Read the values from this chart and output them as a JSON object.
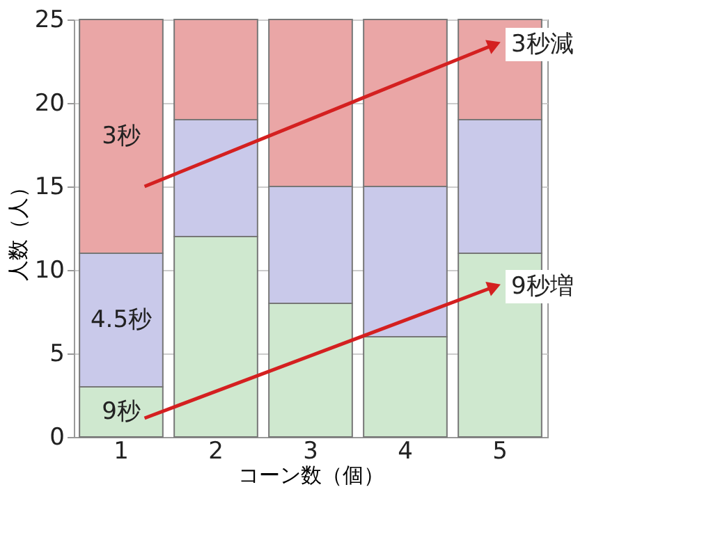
{
  "chart_data": {
    "type": "bar",
    "stacked": true,
    "xlabel": "コーン数（個）",
    "ylabel": "人数（人）",
    "categories": [
      "1",
      "2",
      "3",
      "4",
      "5"
    ],
    "series": [
      {
        "name": "9秒",
        "color": "#cfe8cf",
        "values": [
          3,
          12,
          8,
          6,
          11
        ]
      },
      {
        "name": "4.5秒",
        "color": "#c9c9ea",
        "values": [
          8,
          7,
          7,
          9,
          8
        ]
      },
      {
        "name": "3秒",
        "color": "#eaa6a6",
        "values": [
          14,
          6,
          10,
          10,
          6
        ]
      }
    ],
    "ylim": [
      0,
      25
    ],
    "yticks": [
      0,
      5,
      10,
      15,
      20,
      25
    ],
    "grid": "y",
    "legend": false,
    "annotations": [
      "3秒減",
      "9秒増"
    ]
  }
}
